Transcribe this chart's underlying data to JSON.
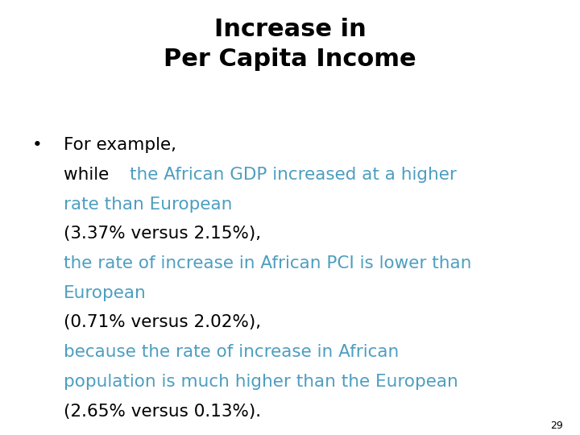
{
  "title_line1": "Increase in",
  "title_line2": "Per Capita Income",
  "title_color": "#000000",
  "title_fontsize": 22,
  "title_fontweight": "bold",
  "background_color": "#ffffff",
  "blue_color": "#4d9ec0",
  "black_color": "#000000",
  "page_number": "29",
  "page_number_fontsize": 9,
  "body_fontsize": 15.5,
  "lines": [
    {
      "segments": [
        {
          "text": "For example,",
          "color": "#000000"
        }
      ],
      "bullet": true
    },
    {
      "segments": [
        {
          "text": "while ",
          "color": "#000000"
        },
        {
          "text": "the African GDP increased at a higher",
          "color": "#4d9ec0"
        }
      ],
      "bullet": false
    },
    {
      "segments": [
        {
          "text": "rate than European",
          "color": "#4d9ec0"
        }
      ],
      "bullet": false
    },
    {
      "segments": [
        {
          "text": "(3.37% versus 2.15%),",
          "color": "#000000"
        }
      ],
      "bullet": false
    },
    {
      "segments": [
        {
          "text": "the rate of increase in African PCI is lower than",
          "color": "#4d9ec0"
        }
      ],
      "bullet": false
    },
    {
      "segments": [
        {
          "text": "European",
          "color": "#4d9ec0"
        }
      ],
      "bullet": false
    },
    {
      "segments": [
        {
          "text": "(0.71% versus 2.02%),",
          "color": "#000000"
        }
      ],
      "bullet": false
    },
    {
      "segments": [
        {
          "text": "because the rate of increase in African",
          "color": "#4d9ec0"
        }
      ],
      "bullet": false
    },
    {
      "segments": [
        {
          "text": "population is much higher than the European",
          "color": "#4d9ec0"
        }
      ],
      "bullet": false
    },
    {
      "segments": [
        {
          "text": "(2.65% versus 0.13%).",
          "color": "#000000"
        }
      ],
      "bullet": false
    }
  ]
}
